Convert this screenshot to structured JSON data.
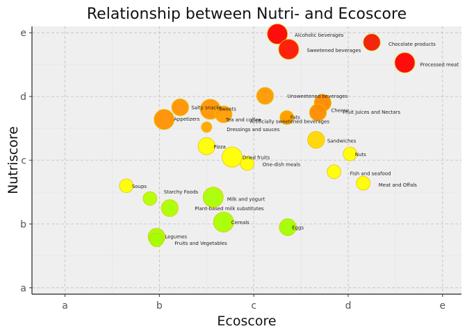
{
  "chart_data": {
    "type": "scatter",
    "title": "Relationship between Nutri- and Ecoscore",
    "xlabel": "Ecoscore",
    "ylabel": "Nutriscore",
    "xlim": [
      0.65,
      5.2
    ],
    "ylim": [
      0.9,
      5.1
    ],
    "x_ticks": [
      {
        "value": 1,
        "label": "a"
      },
      {
        "value": 2,
        "label": "b"
      },
      {
        "value": 3,
        "label": "c"
      },
      {
        "value": 4,
        "label": "d"
      },
      {
        "value": 5,
        "label": "e"
      }
    ],
    "y_ticks": [
      {
        "value": 1,
        "label": "a"
      },
      {
        "value": 2,
        "label": "b"
      },
      {
        "value": 3,
        "label": "c"
      },
      {
        "value": 4,
        "label": "d"
      },
      {
        "value": 5,
        "label": "e"
      }
    ],
    "grid": true,
    "colors": {
      "panel": "#efefef",
      "grid_major": "#bdbdbd",
      "grid_minor": "#e4e4e4",
      "point_stroke": "#e8c400"
    },
    "points": [
      {
        "label": "Alcoholic beverages",
        "x": 3.25,
        "y": 4.98,
        "size": 5,
        "color": "#ff0000"
      },
      {
        "label": "Chocolate products",
        "x": 4.25,
        "y": 4.85,
        "size": 4,
        "color": "#f01a00"
      },
      {
        "label": "Sweetened beverages",
        "x": 3.37,
        "y": 4.74,
        "size": 5,
        "color": "#ff1500"
      },
      {
        "label": "Processed meat",
        "x": 4.6,
        "y": 4.53,
        "size": 5,
        "color": "#ff0000"
      },
      {
        "label": "Unsweetened beverages",
        "x": 3.12,
        "y": 4.01,
        "size": 4,
        "color": "#ff9900"
      },
      {
        "label": "Cheese",
        "x": 3.73,
        "y": 3.9,
        "size": 4,
        "color": "#ff8800"
      },
      {
        "label": "Salty snacks",
        "x": 2.22,
        "y": 3.83,
        "size": 4,
        "color": "#ff9200"
      },
      {
        "label": "Sweets",
        "x": 2.54,
        "y": 3.8,
        "size": 5,
        "color": "#ff9500"
      },
      {
        "label": "Tea and coffee",
        "x": 2.68,
        "y": 3.72,
        "size": 4,
        "color": "#ff9d00"
      },
      {
        "label": "Fruit Juices and Nectars",
        "x": 3.68,
        "y": 3.75,
        "size": 4,
        "color": "#ff8c00"
      },
      {
        "label": "Fats",
        "x": 3.35,
        "y": 3.67,
        "size": 3,
        "color": "#ff9a00"
      },
      {
        "label": "Artificially sweetened beverages",
        "x": 3.35,
        "y": 3.67,
        "size": 3,
        "color": "#ffa000"
      },
      {
        "label": "Appetizers",
        "x": 2.05,
        "y": 3.64,
        "size": 5,
        "color": "#ff9000"
      },
      {
        "label": "Dressings and sauces",
        "x": 2.5,
        "y": 3.52,
        "size": 2,
        "color": "#ffa500"
      },
      {
        "label": "Sandwiches",
        "x": 3.66,
        "y": 3.32,
        "size": 4,
        "color": "#ffd700"
      },
      {
        "label": "Pizza",
        "x": 2.5,
        "y": 3.22,
        "size": 4,
        "color": "#ffff00"
      },
      {
        "label": "Nuts",
        "x": 4.02,
        "y": 3.1,
        "size": 3,
        "color": "#ffff00"
      },
      {
        "label": "Dried fruits",
        "x": 2.77,
        "y": 3.05,
        "size": 5,
        "color": "#ffff00"
      },
      {
        "label": "One-dish meals",
        "x": 2.93,
        "y": 2.95,
        "size": 3,
        "color": "#ffff00"
      },
      {
        "label": "Fish and seafood",
        "x": 3.85,
        "y": 2.82,
        "size": 3,
        "color": "#ffff00"
      },
      {
        "label": "Meat and Offals",
        "x": 4.16,
        "y": 2.64,
        "size": 3,
        "color": "#ffff00"
      },
      {
        "label": "Soups",
        "x": 1.65,
        "y": 2.6,
        "size": 3,
        "color": "#ffff00"
      },
      {
        "label": "Starchy Foods",
        "x": 1.9,
        "y": 2.4,
        "size": 3,
        "color": "#b2ff00"
      },
      {
        "label": "Milk and yogurt",
        "x": 2.57,
        "y": 2.42,
        "size": 5,
        "color": "#a8ff00"
      },
      {
        "label": "Plant-based milk substitutes",
        "x": 2.11,
        "y": 2.25,
        "size": 4,
        "color": "#aaff00"
      },
      {
        "label": "Cereals",
        "x": 2.68,
        "y": 2.03,
        "size": 5,
        "color": "#a8ff00"
      },
      {
        "label": "Eggs",
        "x": 3.36,
        "y": 1.95,
        "size": 4,
        "color": "#a0ff00"
      },
      {
        "label": "Legumes",
        "x": 1.97,
        "y": 1.8,
        "size": 4,
        "color": "#a3ff00"
      },
      {
        "label": "Fruits and Vegetables",
        "x": 1.97,
        "y": 1.75,
        "size": 3,
        "color": "#a3ff00"
      }
    ]
  }
}
